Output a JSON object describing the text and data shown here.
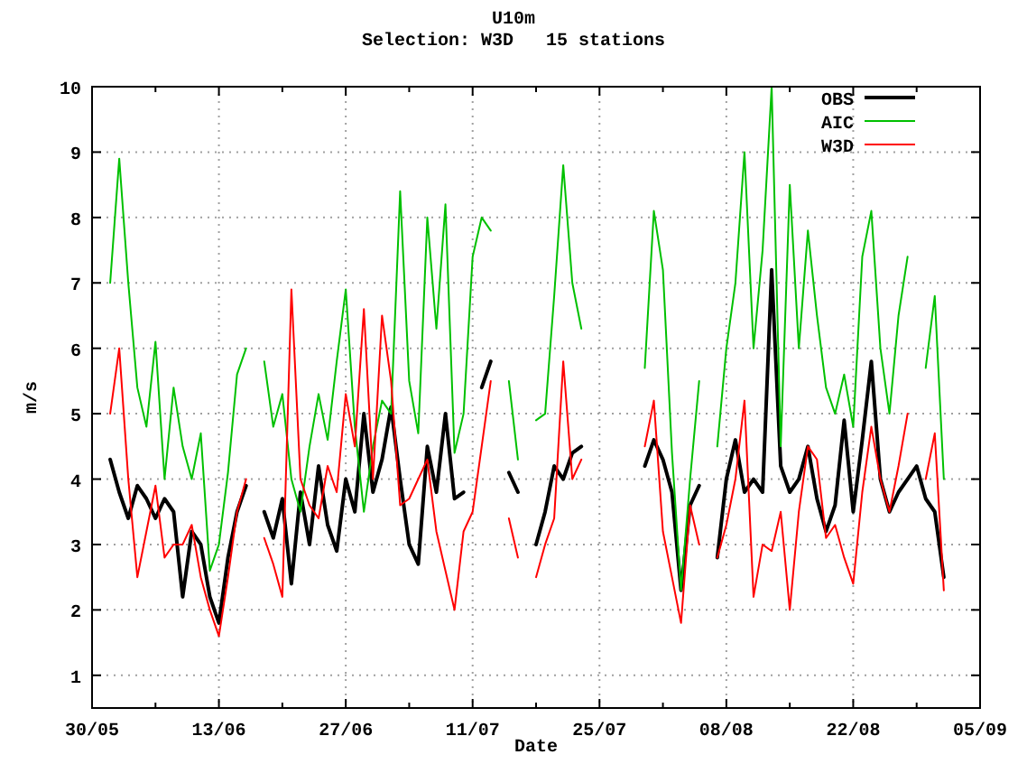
{
  "chart_data": {
    "type": "line",
    "title": "U10m",
    "subtitle": "Selection: W3D   15 stations",
    "xlabel": "Date",
    "ylabel": "m/s",
    "x": [
      "--06-01",
      "--06-02",
      "--06-03",
      "--06-04",
      "--06-05",
      "--06-06",
      "--06-07",
      "--06-08",
      "--06-09",
      "--06-10",
      "--06-11",
      "--06-12",
      "--06-13",
      "--06-14",
      "--06-15",
      "--06-16",
      "--06-17",
      "--06-18",
      "--06-19",
      "--06-20",
      "--06-21",
      "--06-22",
      "--06-23",
      "--06-24",
      "--06-25",
      "--06-26",
      "--06-27",
      "--06-28",
      "--06-29",
      "--06-30",
      "--07-01",
      "--07-02",
      "--07-03",
      "--07-04",
      "--07-05",
      "--07-06",
      "--07-07",
      "--07-08",
      "--07-09",
      "--07-10",
      "--07-11",
      "--07-12",
      "--07-13",
      "--07-14",
      "--07-15",
      "--07-16",
      "--07-17",
      "--07-18",
      "--07-19",
      "--07-20",
      "--07-21",
      "--07-22",
      "--07-23",
      "--07-24",
      "--07-25",
      "--07-26",
      "--07-27",
      "--07-28",
      "--07-29",
      "--07-30",
      "--07-31",
      "--08-01",
      "--08-02",
      "--08-03",
      "--08-04",
      "--08-05",
      "--08-06",
      "--08-07",
      "--08-08",
      "--08-09",
      "--08-10",
      "--08-11",
      "--08-12",
      "--08-13",
      "--08-14",
      "--08-15",
      "--08-16",
      "--08-17",
      "--08-18",
      "--08-19",
      "--08-20",
      "--08-21",
      "--08-22",
      "--08-23",
      "--08-24",
      "--08-25",
      "--08-26",
      "--08-27",
      "--08-28",
      "--08-29",
      "--08-30",
      "--08-31",
      "--09-01"
    ],
    "series": [
      {
        "name": "OBS",
        "color": "#000000",
        "values": [
          4.3,
          3.8,
          3.4,
          3.9,
          3.7,
          3.4,
          3.7,
          3.5,
          2.2,
          3.2,
          3.0,
          2.2,
          1.8,
          2.8,
          3.5,
          3.9,
          null,
          3.5,
          3.1,
          3.7,
          2.4,
          3.8,
          3.0,
          4.2,
          3.3,
          2.9,
          4.0,
          3.5,
          5.0,
          3.8,
          4.3,
          5.1,
          4.0,
          3.0,
          2.7,
          4.5,
          3.8,
          5.0,
          3.7,
          3.8,
          null,
          5.4,
          5.8,
          null,
          4.1,
          3.8,
          null,
          3.0,
          3.5,
          4.2,
          4.0,
          4.4,
          4.5,
          null,
          null,
          null,
          null,
          null,
          null,
          4.2,
          4.6,
          4.3,
          3.8,
          2.3,
          3.6,
          3.9,
          null,
          2.8,
          4.0,
          4.6,
          3.8,
          4.0,
          3.8,
          7.2,
          4.2,
          3.8,
          4.0,
          4.5,
          3.7,
          3.2,
          3.6,
          4.9,
          3.5,
          4.6,
          5.8,
          4.0,
          3.5,
          3.8,
          4.0,
          4.2,
          3.7,
          3.5,
          2.5
        ]
      },
      {
        "name": "AIC",
        "color": "#00c000",
        "values": [
          7.0,
          8.9,
          7.0,
          5.4,
          4.8,
          6.1,
          4.0,
          5.4,
          4.5,
          4.0,
          4.7,
          2.6,
          3.0,
          4.1,
          5.6,
          6.0,
          null,
          5.8,
          4.8,
          5.3,
          4.0,
          3.5,
          4.5,
          5.3,
          4.6,
          5.8,
          6.9,
          4.8,
          3.5,
          4.5,
          5.2,
          5.0,
          8.4,
          5.5,
          4.7,
          8.0,
          6.3,
          8.2,
          4.4,
          5.0,
          7.4,
          8.0,
          7.8,
          null,
          5.5,
          4.3,
          null,
          4.9,
          5.0,
          6.8,
          8.8,
          7.0,
          6.3,
          null,
          null,
          null,
          null,
          null,
          null,
          5.7,
          8.1,
          7.2,
          4.4,
          2.3,
          4.0,
          5.5,
          null,
          4.5,
          6.0,
          7.0,
          9.0,
          6.0,
          7.5,
          10.0,
          4.5,
          8.5,
          6.0,
          7.8,
          6.5,
          5.4,
          5.0,
          5.6,
          4.8,
          7.4,
          8.1,
          6.0,
          5.0,
          6.5,
          7.4,
          null,
          5.7,
          6.8,
          4.0
        ]
      },
      {
        "name": "W3D",
        "color": "#ff0000",
        "values": [
          5.0,
          6.0,
          4.0,
          2.5,
          3.2,
          3.9,
          2.8,
          3.0,
          3.0,
          3.3,
          2.5,
          2.0,
          1.6,
          2.5,
          3.5,
          4.0,
          null,
          3.1,
          2.7,
          2.2,
          6.9,
          4.0,
          3.6,
          3.4,
          4.2,
          3.8,
          5.3,
          4.5,
          6.6,
          4.0,
          6.5,
          5.5,
          3.6,
          3.7,
          4.0,
          4.3,
          3.2,
          2.6,
          2.0,
          3.2,
          3.5,
          4.5,
          5.5,
          null,
          3.4,
          2.8,
          null,
          2.5,
          3.0,
          3.4,
          5.8,
          4.0,
          4.3,
          null,
          null,
          null,
          null,
          null,
          null,
          4.5,
          5.2,
          3.2,
          2.5,
          1.8,
          3.6,
          3.0,
          null,
          2.8,
          3.3,
          4.0,
          5.2,
          2.2,
          3.0,
          2.9,
          3.5,
          2.0,
          3.5,
          4.5,
          4.3,
          3.1,
          3.3,
          2.8,
          2.4,
          3.8,
          4.8,
          4.0,
          3.5,
          4.2,
          5.0,
          null,
          4.0,
          4.7,
          2.3
        ]
      }
    ],
    "xlim": [
      "--05-30",
      "--09-05"
    ],
    "xticks": [
      {
        "value": "--05-30",
        "label": "30/05"
      },
      {
        "value": "--06-06",
        "label": null
      },
      {
        "value": "--06-13",
        "label": "13/06"
      },
      {
        "value": "--06-20",
        "label": null
      },
      {
        "value": "--06-27",
        "label": "27/06"
      },
      {
        "value": "--07-04",
        "label": null
      },
      {
        "value": "--07-11",
        "label": "11/07"
      },
      {
        "value": "--07-18",
        "label": null
      },
      {
        "value": "--07-25",
        "label": "25/07"
      },
      {
        "value": "--08-01",
        "label": null
      },
      {
        "value": "--08-08",
        "label": "08/08"
      },
      {
        "value": "--08-15",
        "label": null
      },
      {
        "value": "--08-22",
        "label": "22/08"
      },
      {
        "value": "--08-29",
        "label": null
      },
      {
        "value": "--09-05",
        "label": "05/09"
      }
    ],
    "ylim": [
      0.5,
      10
    ],
    "yticks": [
      1,
      2,
      3,
      4,
      5,
      6,
      7,
      8,
      9,
      10
    ],
    "grid": true,
    "legend": "top right",
    "marker": "none",
    "line_style": "solid"
  }
}
